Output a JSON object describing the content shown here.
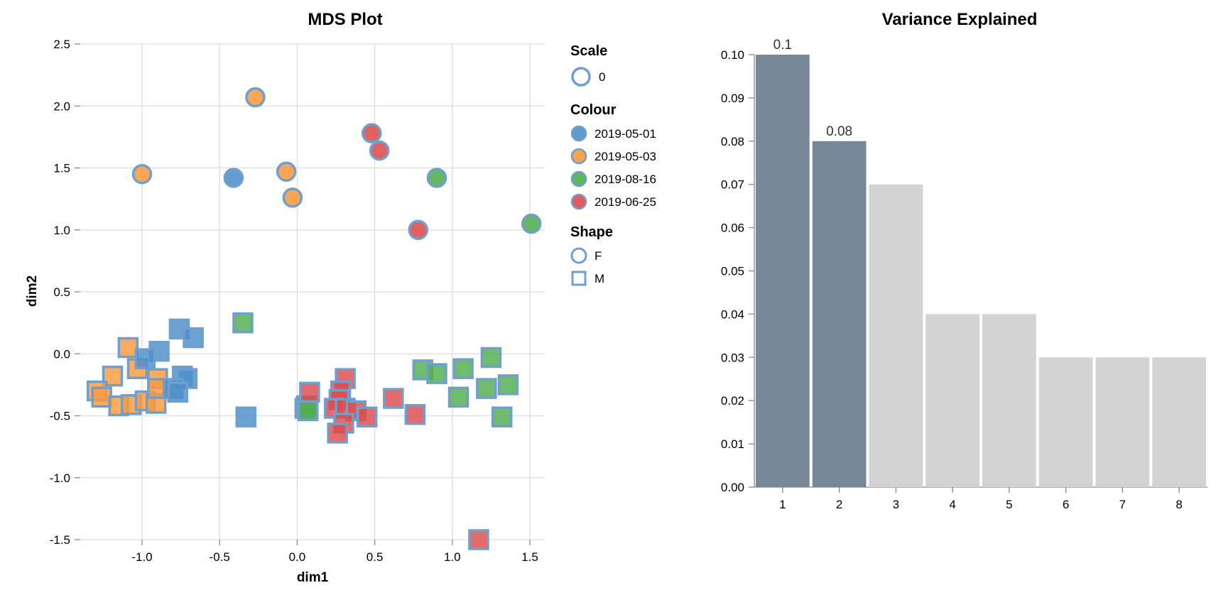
{
  "colors": {
    "2019-05-01": "#4c8fc9",
    "2019-05-03": "#fb9a3c",
    "2019-08-16": "#4fae4c",
    "2019-06-25": "#dd4a4a",
    "stroke": "#6e9fce",
    "bar_highlight": "#778899",
    "bar_default": "#d3d3d3"
  },
  "chart_data": [
    {
      "type": "scatter",
      "title": "MDS Plot",
      "xlabel": "dim1",
      "ylabel": "dim2",
      "xlim": [
        -1.4,
        1.6
      ],
      "ylim": [
        -1.6,
        2.5
      ],
      "xticks": [
        -1.0,
        -0.5,
        0.0,
        0.5,
        1.0,
        1.5
      ],
      "xtick_labels": [
        "-1.0",
        "-0.5",
        "0.0",
        "0.5",
        "1.0",
        "1.5"
      ],
      "yticks": [
        2.5,
        2.0,
        1.5,
        1.0,
        0.5,
        0.0,
        -0.5,
        -1.0,
        -1.5
      ],
      "ytick_labels": [
        "2.5",
        "2.0",
        "1.5",
        "1.0",
        "0.5",
        "0.0",
        "-0.5",
        "-1.0",
        "-1.5"
      ],
      "grid": true,
      "legend": {
        "placement": "right",
        "scale_title": "Scale",
        "scale_items": [
          "0"
        ],
        "colour_title": "Colour",
        "colour_items": [
          "2019-05-01",
          "2019-05-03",
          "2019-08-16",
          "2019-06-25"
        ],
        "shape_title": "Shape",
        "shape_items": [
          "F",
          "M"
        ]
      },
      "points": [
        {
          "x": -1.0,
          "y": 1.45,
          "colour": "2019-05-03",
          "shape": "F"
        },
        {
          "x": -0.27,
          "y": 2.07,
          "colour": "2019-05-03",
          "shape": "F"
        },
        {
          "x": -0.07,
          "y": 1.47,
          "colour": "2019-05-03",
          "shape": "F"
        },
        {
          "x": -0.03,
          "y": 1.26,
          "colour": "2019-05-03",
          "shape": "F"
        },
        {
          "x": -0.41,
          "y": 1.42,
          "colour": "2019-05-01",
          "shape": "F"
        },
        {
          "x": 0.48,
          "y": 1.78,
          "colour": "2019-06-25",
          "shape": "F"
        },
        {
          "x": 0.53,
          "y": 1.64,
          "colour": "2019-06-25",
          "shape": "F"
        },
        {
          "x": 0.78,
          "y": 1.0,
          "colour": "2019-06-25",
          "shape": "F"
        },
        {
          "x": 0.9,
          "y": 1.42,
          "colour": "2019-08-16",
          "shape": "F"
        },
        {
          "x": 1.51,
          "y": 1.05,
          "colour": "2019-08-16",
          "shape": "F"
        },
        {
          "x": -1.09,
          "y": 0.05,
          "colour": "2019-05-03",
          "shape": "M"
        },
        {
          "x": -1.19,
          "y": -0.18,
          "colour": "2019-05-03",
          "shape": "M"
        },
        {
          "x": -1.29,
          "y": -0.3,
          "colour": "2019-05-03",
          "shape": "M"
        },
        {
          "x": -1.26,
          "y": -0.35,
          "colour": "2019-05-03",
          "shape": "M"
        },
        {
          "x": -1.15,
          "y": -0.42,
          "colour": "2019-05-03",
          "shape": "M"
        },
        {
          "x": -1.07,
          "y": -0.41,
          "colour": "2019-05-03",
          "shape": "M"
        },
        {
          "x": -0.98,
          "y": -0.38,
          "colour": "2019-05-03",
          "shape": "M"
        },
        {
          "x": -0.91,
          "y": -0.4,
          "colour": "2019-05-03",
          "shape": "M"
        },
        {
          "x": -1.03,
          "y": -0.12,
          "colour": "2019-05-03",
          "shape": "M"
        },
        {
          "x": -0.9,
          "y": -0.2,
          "colour": "2019-05-03",
          "shape": "M"
        },
        {
          "x": -0.9,
          "y": -0.28,
          "colour": "2019-05-03",
          "shape": "M"
        },
        {
          "x": -0.76,
          "y": 0.2,
          "colour": "2019-05-01",
          "shape": "M"
        },
        {
          "x": -0.67,
          "y": 0.13,
          "colour": "2019-05-01",
          "shape": "M"
        },
        {
          "x": -0.89,
          "y": 0.02,
          "colour": "2019-05-01",
          "shape": "M"
        },
        {
          "x": -0.98,
          "y": -0.04,
          "colour": "2019-05-01",
          "shape": "M"
        },
        {
          "x": -0.74,
          "y": -0.18,
          "colour": "2019-05-01",
          "shape": "M"
        },
        {
          "x": -0.71,
          "y": -0.2,
          "colour": "2019-05-01",
          "shape": "M"
        },
        {
          "x": -0.8,
          "y": -0.28,
          "colour": "2019-05-01",
          "shape": "M"
        },
        {
          "x": -0.77,
          "y": -0.31,
          "colour": "2019-05-01",
          "shape": "M"
        },
        {
          "x": -0.33,
          "y": -0.51,
          "colour": "2019-05-01",
          "shape": "M"
        },
        {
          "x": 0.05,
          "y": -0.44,
          "colour": "2019-05-01",
          "shape": "M"
        },
        {
          "x": -0.35,
          "y": 0.25,
          "colour": "2019-08-16",
          "shape": "M"
        },
        {
          "x": 0.06,
          "y": -0.42,
          "colour": "2019-08-16",
          "shape": "M"
        },
        {
          "x": 0.07,
          "y": -0.46,
          "colour": "2019-08-16",
          "shape": "M"
        },
        {
          "x": 0.81,
          "y": -0.13,
          "colour": "2019-08-16",
          "shape": "M"
        },
        {
          "x": 0.9,
          "y": -0.16,
          "colour": "2019-08-16",
          "shape": "M"
        },
        {
          "x": 1.07,
          "y": -0.12,
          "colour": "2019-08-16",
          "shape": "M"
        },
        {
          "x": 1.25,
          "y": -0.03,
          "colour": "2019-08-16",
          "shape": "M"
        },
        {
          "x": 1.22,
          "y": -0.28,
          "colour": "2019-08-16",
          "shape": "M"
        },
        {
          "x": 1.36,
          "y": -0.25,
          "colour": "2019-08-16",
          "shape": "M"
        },
        {
          "x": 1.04,
          "y": -0.35,
          "colour": "2019-08-16",
          "shape": "M"
        },
        {
          "x": 1.32,
          "y": -0.51,
          "colour": "2019-08-16",
          "shape": "M"
        },
        {
          "x": 0.08,
          "y": -0.31,
          "colour": "2019-06-25",
          "shape": "M"
        },
        {
          "x": 0.31,
          "y": -0.2,
          "colour": "2019-06-25",
          "shape": "M"
        },
        {
          "x": 0.28,
          "y": -0.3,
          "colour": "2019-06-25",
          "shape": "M"
        },
        {
          "x": 0.27,
          "y": -0.37,
          "colour": "2019-06-25",
          "shape": "M"
        },
        {
          "x": 0.24,
          "y": -0.44,
          "colour": "2019-06-25",
          "shape": "M"
        },
        {
          "x": 0.31,
          "y": -0.44,
          "colour": "2019-06-25",
          "shape": "M"
        },
        {
          "x": 0.38,
          "y": -0.46,
          "colour": "2019-06-25",
          "shape": "M"
        },
        {
          "x": 0.45,
          "y": -0.51,
          "colour": "2019-06-25",
          "shape": "M"
        },
        {
          "x": 0.3,
          "y": -0.56,
          "colour": "2019-06-25",
          "shape": "M"
        },
        {
          "x": 0.26,
          "y": -0.64,
          "colour": "2019-06-25",
          "shape": "M"
        },
        {
          "x": 0.62,
          "y": -0.36,
          "colour": "2019-06-25",
          "shape": "M"
        },
        {
          "x": 0.76,
          "y": -0.49,
          "colour": "2019-06-25",
          "shape": "M"
        },
        {
          "x": 1.17,
          "y": -1.5,
          "colour": "2019-06-25",
          "shape": "M"
        }
      ]
    },
    {
      "type": "bar",
      "title": "Variance Explained",
      "xlabel": "",
      "ylabel": "",
      "categories": [
        "1",
        "2",
        "3",
        "4",
        "5",
        "6",
        "7",
        "8"
      ],
      "values": [
        0.1,
        0.08,
        0.07,
        0.04,
        0.04,
        0.03,
        0.03,
        0.03
      ],
      "highlighted": [
        true,
        true,
        false,
        false,
        false,
        false,
        false,
        false
      ],
      "data_labels": [
        "0.1",
        "0.08",
        "",
        "",
        "",
        "",
        "",
        ""
      ],
      "ylim": [
        0,
        0.1
      ],
      "yticks": [
        0.0,
        0.01,
        0.02,
        0.03,
        0.04,
        0.05,
        0.06,
        0.07,
        0.08,
        0.09,
        0.1
      ],
      "ytick_labels": [
        "0.00",
        "0.01",
        "0.02",
        "0.03",
        "0.04",
        "0.05",
        "0.06",
        "0.07",
        "0.08",
        "0.09",
        "0.10"
      ]
    }
  ]
}
